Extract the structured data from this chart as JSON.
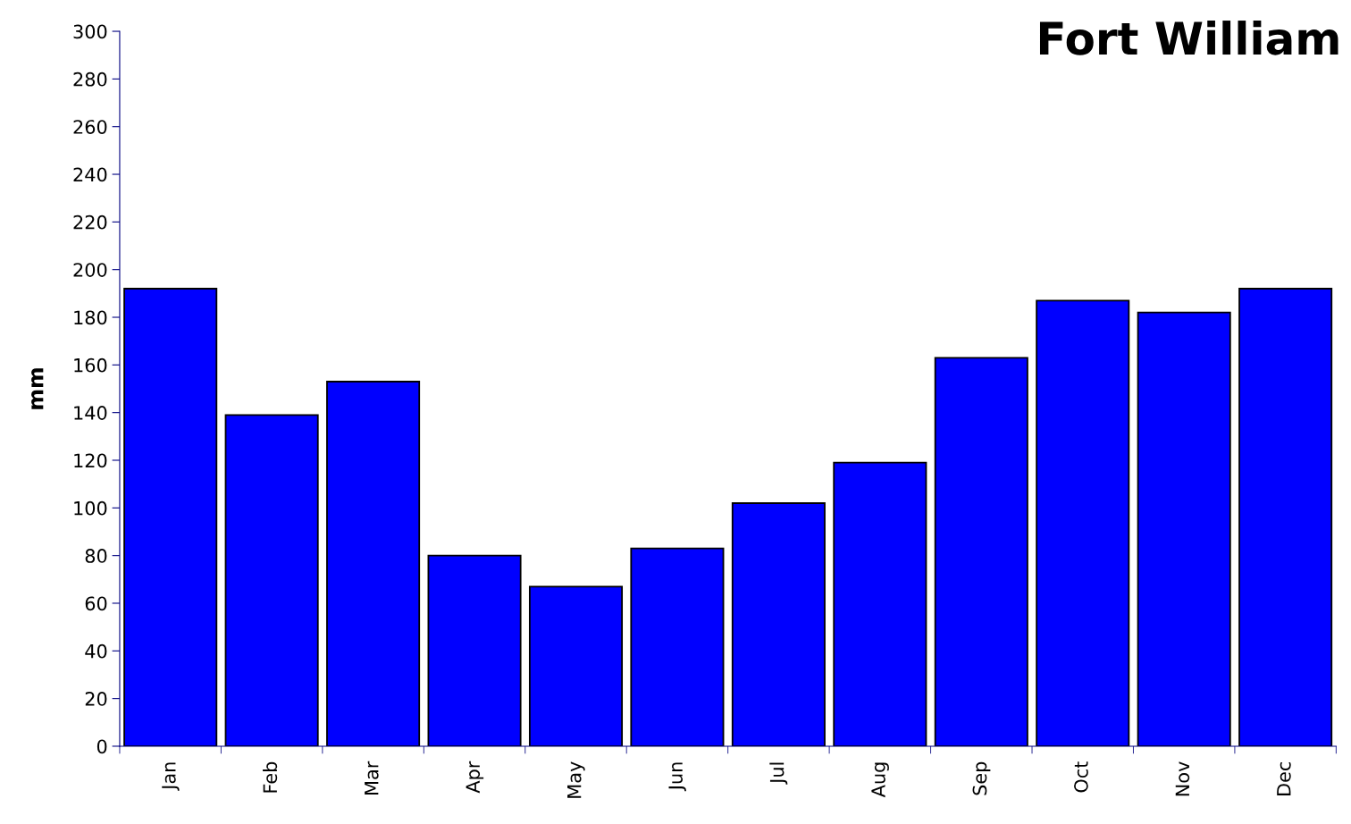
{
  "chart_data": {
    "type": "bar",
    "title": "Fort William",
    "ylabel": "mm",
    "categories": [
      "Jan",
      "Feb",
      "Mar",
      "Apr",
      "May",
      "Jun",
      "Jul",
      "Aug",
      "Sep",
      "Oct",
      "Nov",
      "Dec"
    ],
    "values": [
      192,
      139,
      153,
      80,
      67,
      83,
      102,
      119,
      163,
      187,
      182,
      192
    ],
    "color": "#0000ff",
    "ylim": [
      0,
      300
    ],
    "yticks": [
      0,
      20,
      40,
      60,
      80,
      100,
      120,
      140,
      160,
      180,
      200,
      220,
      240,
      260,
      280,
      300
    ],
    "grid": false,
    "legend": false
  }
}
